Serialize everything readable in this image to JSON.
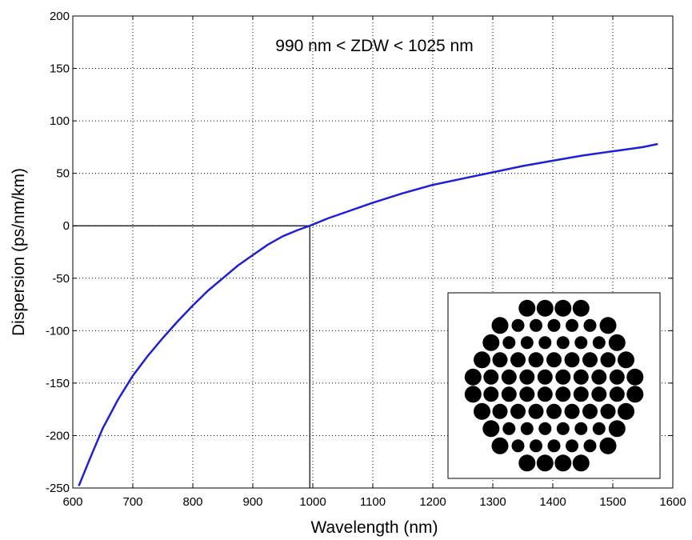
{
  "chart_data": {
    "type": "line",
    "title": "",
    "xlabel": "Wavelength (nm)",
    "ylabel": "Dispersion (ps/nm/km)",
    "xlim": [
      600,
      1600
    ],
    "ylim": [
      -250,
      200
    ],
    "xticks": [
      600,
      700,
      800,
      900,
      1000,
      1100,
      1200,
      1300,
      1400,
      1500,
      1600
    ],
    "yticks": [
      -250,
      -200,
      -150,
      -100,
      -50,
      0,
      50,
      100,
      150,
      200
    ],
    "grid": true,
    "annotation": "990 nm < ZDW < 1025 nm",
    "zero_crossing": {
      "x": 995,
      "y": 0
    },
    "series": [
      {
        "color": "#1f1fd6",
        "x": [
          610,
          630,
          650,
          675,
          700,
          725,
          750,
          775,
          800,
          825,
          850,
          875,
          900,
          925,
          950,
          975,
          995,
          1025,
          1050,
          1100,
          1150,
          1200,
          1250,
          1300,
          1350,
          1400,
          1450,
          1500,
          1550,
          1575
        ],
        "y": [
          -248,
          -220,
          -193,
          -166,
          -143,
          -124,
          -107,
          -91,
          -76,
          -62,
          -50,
          -38,
          -28,
          -18,
          -10,
          -4,
          0,
          7,
          12,
          22,
          31,
          39,
          45,
          51,
          57,
          62,
          67,
          71,
          75,
          78
        ]
      }
    ],
    "inset": {
      "description_icon": "photonic-crystal-fiber-cross-section",
      "rows": [
        4,
        7,
        8,
        9,
        10,
        10,
        9,
        8,
        7,
        4
      ]
    }
  }
}
